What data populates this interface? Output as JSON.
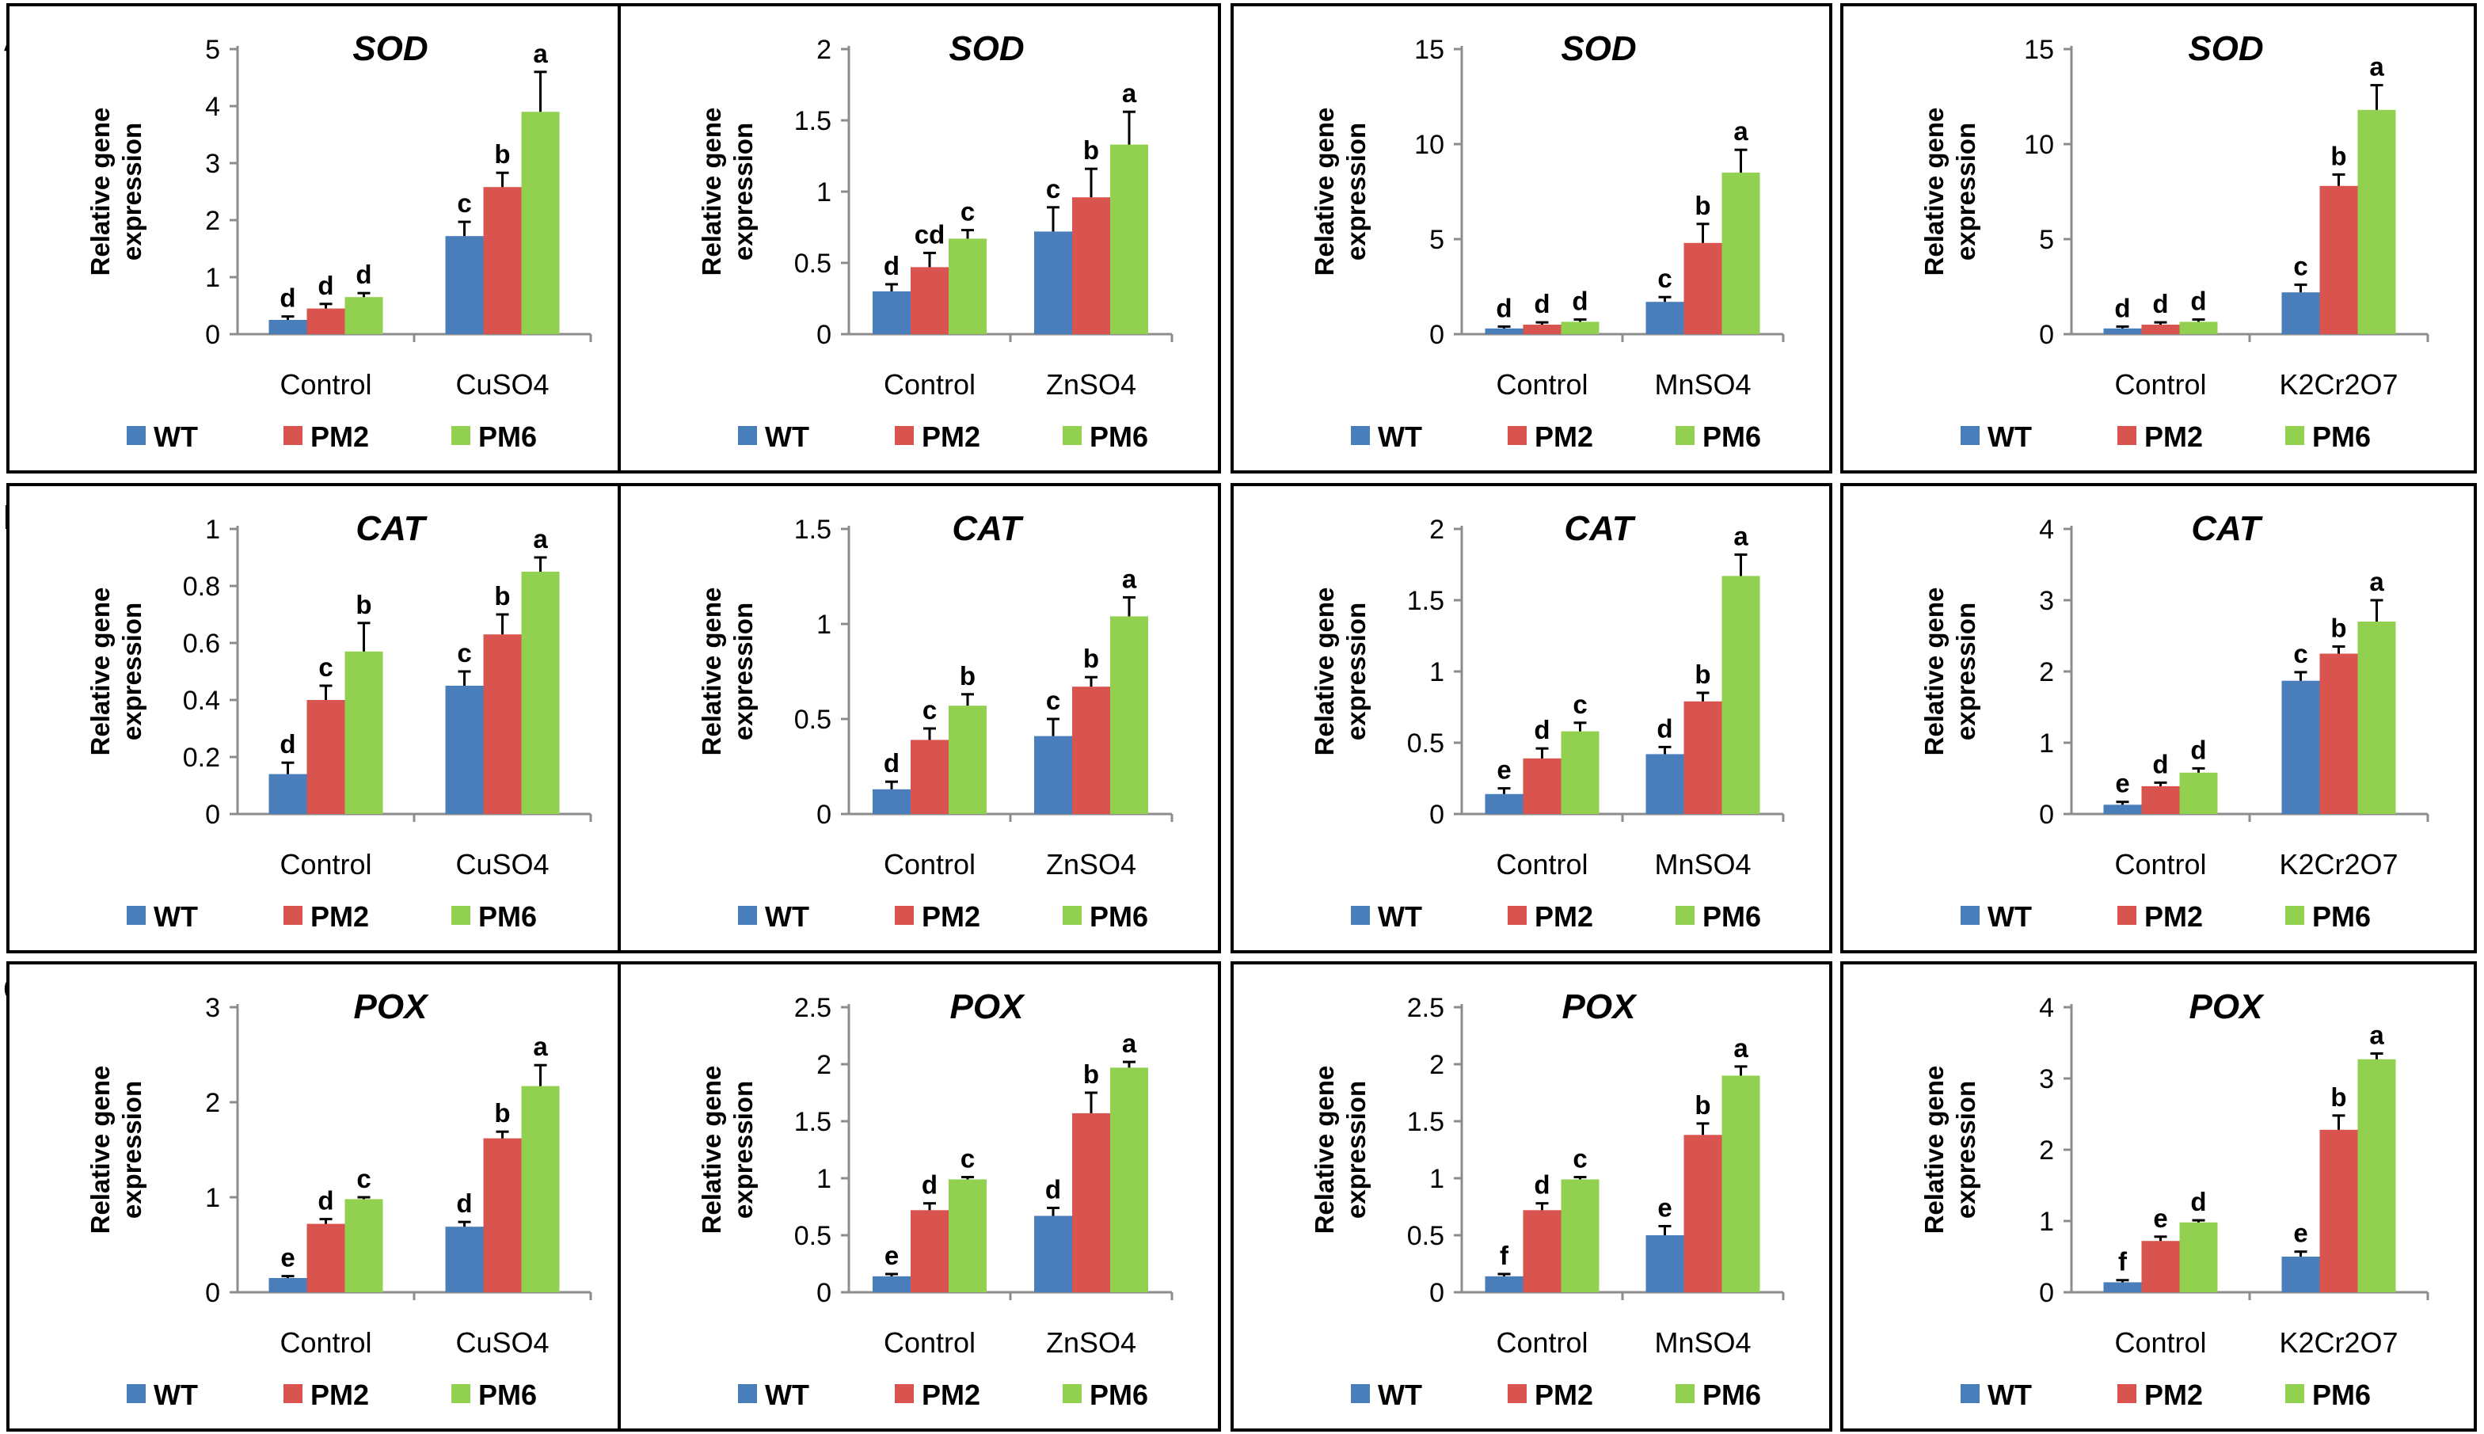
{
  "figure": {
    "row_labels": [
      "A",
      "B",
      "C"
    ],
    "colors": {
      "WT": "#4a7ebb",
      "PM2": "#d9534f",
      "PM6": "#92d050"
    }
  },
  "chart_data": [
    {
      "type": "bar",
      "row": "A",
      "col": 0,
      "title": "SOD",
      "ylabel": "Relative gene expression",
      "ylabel_lines": [
        "Relative gene",
        "expression"
      ],
      "ylim": [
        0,
        5
      ],
      "yticks": [
        0,
        1,
        2,
        3,
        4,
        5
      ],
      "ytick_labels": [
        "0",
        "1",
        "2",
        "3",
        "4",
        "5"
      ],
      "categories": [
        "Control",
        "CuSO4"
      ],
      "legend": [
        "WT",
        "PM2",
        "PM6"
      ],
      "series": [
        {
          "name": "WT",
          "values": [
            0.25,
            1.72
          ],
          "errors": [
            0.06,
            0.25
          ],
          "letters": [
            "d",
            "c"
          ]
        },
        {
          "name": "PM2",
          "values": [
            0.45,
            2.58
          ],
          "errors": [
            0.08,
            0.25
          ],
          "letters": [
            "d",
            "b"
          ]
        },
        {
          "name": "PM6",
          "values": [
            0.65,
            3.9
          ],
          "errors": [
            0.07,
            0.7
          ],
          "letters": [
            "d",
            "a"
          ]
        }
      ]
    },
    {
      "type": "bar",
      "row": "A",
      "col": 1,
      "title": "SOD",
      "ylabel": "Relative gene expression",
      "ylabel_lines": [
        "Relative gene",
        "expression"
      ],
      "ylim": [
        0,
        2
      ],
      "yticks": [
        0,
        0.5,
        1,
        1.5,
        2
      ],
      "ytick_labels": [
        "0",
        "0.5",
        "1",
        "1.5",
        "2"
      ],
      "categories": [
        "Control",
        "ZnSO4"
      ],
      "legend": [
        "WT",
        "PM2",
        "PM6"
      ],
      "series": [
        {
          "name": "WT",
          "values": [
            0.3,
            0.72
          ],
          "errors": [
            0.05,
            0.17
          ],
          "letters": [
            "d",
            "c"
          ]
        },
        {
          "name": "PM2",
          "values": [
            0.47,
            0.96
          ],
          "errors": [
            0.1,
            0.2
          ],
          "letters": [
            "cd",
            "b"
          ]
        },
        {
          "name": "PM6",
          "values": [
            0.67,
            1.33
          ],
          "errors": [
            0.06,
            0.23
          ],
          "letters": [
            "c",
            "a"
          ]
        }
      ]
    },
    {
      "type": "bar",
      "row": "A",
      "col": 2,
      "title": "SOD",
      "ylabel": "Relative gene expression",
      "ylabel_lines": [
        "Relative gene",
        "expression"
      ],
      "ylim": [
        0,
        15
      ],
      "yticks": [
        0,
        5,
        10,
        15
      ],
      "ytick_labels": [
        "0",
        "5",
        "10",
        "15"
      ],
      "categories": [
        "Control",
        "MnSO4"
      ],
      "legend": [
        "WT",
        "PM2",
        "PM6"
      ],
      "series": [
        {
          "name": "WT",
          "values": [
            0.3,
            1.7
          ],
          "errors": [
            0.1,
            0.25
          ],
          "letters": [
            "d",
            "c"
          ]
        },
        {
          "name": "PM2",
          "values": [
            0.5,
            4.8
          ],
          "errors": [
            0.12,
            1.0
          ],
          "letters": [
            "d",
            "b"
          ]
        },
        {
          "name": "PM6",
          "values": [
            0.65,
            8.5
          ],
          "errors": [
            0.12,
            1.2
          ],
          "letters": [
            "d",
            "a"
          ]
        }
      ]
    },
    {
      "type": "bar",
      "row": "A",
      "col": 3,
      "title": "SOD",
      "ylabel": "Relative gene expression",
      "ylabel_lines": [
        "Relative gene",
        "expression"
      ],
      "ylim": [
        0,
        15
      ],
      "yticks": [
        0,
        5,
        10,
        15
      ],
      "ytick_labels": [
        "0",
        "5",
        "10",
        "15"
      ],
      "categories": [
        "Control",
        "K2Cr2O7"
      ],
      "legend": [
        "WT",
        "PM2",
        "PM6"
      ],
      "series": [
        {
          "name": "WT",
          "values": [
            0.3,
            2.2
          ],
          "errors": [
            0.1,
            0.4
          ],
          "letters": [
            "d",
            "c"
          ]
        },
        {
          "name": "PM2",
          "values": [
            0.5,
            7.8
          ],
          "errors": [
            0.12,
            0.6
          ],
          "letters": [
            "d",
            "b"
          ]
        },
        {
          "name": "PM6",
          "values": [
            0.65,
            11.8
          ],
          "errors": [
            0.12,
            1.3
          ],
          "letters": [
            "d",
            "a"
          ]
        }
      ]
    },
    {
      "type": "bar",
      "row": "B",
      "col": 0,
      "title": "CAT",
      "ylabel": "Relative gene expression",
      "ylabel_lines": [
        "Relative gene",
        "expression"
      ],
      "ylim": [
        0,
        1
      ],
      "yticks": [
        0,
        0.2,
        0.4,
        0.6,
        0.8,
        1
      ],
      "ytick_labels": [
        "0",
        "0.2",
        "0.4",
        "0.6",
        "0.8",
        "1"
      ],
      "categories": [
        "Control",
        "CuSO4"
      ],
      "legend": [
        "WT",
        "PM2",
        "PM6"
      ],
      "series": [
        {
          "name": "WT",
          "values": [
            0.14,
            0.45
          ],
          "errors": [
            0.04,
            0.05
          ],
          "letters": [
            "d",
            "c"
          ]
        },
        {
          "name": "PM2",
          "values": [
            0.4,
            0.63
          ],
          "errors": [
            0.05,
            0.07
          ],
          "letters": [
            "c",
            "b"
          ]
        },
        {
          "name": "PM6",
          "values": [
            0.57,
            0.85
          ],
          "errors": [
            0.1,
            0.05
          ],
          "letters": [
            "b",
            "a"
          ]
        }
      ]
    },
    {
      "type": "bar",
      "row": "B",
      "col": 1,
      "title": "CAT",
      "ylabel": "Relative gene expression",
      "ylabel_lines": [
        "Relative gene",
        "expression"
      ],
      "ylim": [
        0,
        1.5
      ],
      "yticks": [
        0,
        0.5,
        1,
        1.5
      ],
      "ytick_labels": [
        "0",
        "0.5",
        "1",
        "1.5"
      ],
      "categories": [
        "Control",
        "ZnSO4"
      ],
      "legend": [
        "WT",
        "PM2",
        "PM6"
      ],
      "series": [
        {
          "name": "WT",
          "values": [
            0.13,
            0.41
          ],
          "errors": [
            0.04,
            0.09
          ],
          "letters": [
            "d",
            "c"
          ]
        },
        {
          "name": "PM2",
          "values": [
            0.39,
            0.67
          ],
          "errors": [
            0.06,
            0.05
          ],
          "letters": [
            "c",
            "b"
          ]
        },
        {
          "name": "PM6",
          "values": [
            0.57,
            1.04
          ],
          "errors": [
            0.06,
            0.1
          ],
          "letters": [
            "b",
            "a"
          ]
        }
      ]
    },
    {
      "type": "bar",
      "row": "B",
      "col": 2,
      "title": "CAT",
      "ylabel": "Relative gene expression",
      "ylabel_lines": [
        "Relative gene",
        "expression"
      ],
      "ylim": [
        0,
        2
      ],
      "yticks": [
        0,
        0.5,
        1,
        1.5,
        2
      ],
      "ytick_labels": [
        "0",
        "0.5",
        "1",
        "1.5",
        "2"
      ],
      "categories": [
        "Control",
        "MnSO4"
      ],
      "legend": [
        "WT",
        "PM2",
        "PM6"
      ],
      "series": [
        {
          "name": "WT",
          "values": [
            0.14,
            0.42
          ],
          "errors": [
            0.04,
            0.05
          ],
          "letters": [
            "e",
            "d"
          ]
        },
        {
          "name": "PM2",
          "values": [
            0.39,
            0.79
          ],
          "errors": [
            0.07,
            0.06
          ],
          "letters": [
            "d",
            "b"
          ]
        },
        {
          "name": "PM6",
          "values": [
            0.58,
            1.67
          ],
          "errors": [
            0.06,
            0.15
          ],
          "letters": [
            "c",
            "a"
          ]
        }
      ]
    },
    {
      "type": "bar",
      "row": "B",
      "col": 3,
      "title": "CAT",
      "ylabel": "Relative gene expression",
      "ylabel_lines": [
        "Relative gene",
        "expression"
      ],
      "ylim": [
        0,
        4
      ],
      "yticks": [
        0,
        1,
        2,
        3,
        4
      ],
      "ytick_labels": [
        "0",
        "1",
        "2",
        "3",
        "4"
      ],
      "categories": [
        "Control",
        "K2Cr2O7"
      ],
      "legend": [
        "WT",
        "PM2",
        "PM6"
      ],
      "series": [
        {
          "name": "WT",
          "values": [
            0.13,
            1.87
          ],
          "errors": [
            0.04,
            0.12
          ],
          "letters": [
            "e",
            "c"
          ]
        },
        {
          "name": "PM2",
          "values": [
            0.39,
            2.25
          ],
          "errors": [
            0.05,
            0.1
          ],
          "letters": [
            "d",
            "b"
          ]
        },
        {
          "name": "PM6",
          "values": [
            0.58,
            2.7
          ],
          "errors": [
            0.06,
            0.3
          ],
          "letters": [
            "d",
            "a"
          ]
        }
      ]
    },
    {
      "type": "bar",
      "row": "C",
      "col": 0,
      "title": "POX",
      "ylabel": "Relative gene expression",
      "ylabel_lines": [
        "Relative gene",
        "expression"
      ],
      "ylim": [
        0,
        3
      ],
      "yticks": [
        0,
        1,
        2,
        3
      ],
      "ytick_labels": [
        "0",
        "1",
        "2",
        "3"
      ],
      "categories": [
        "Control",
        "CuSO4"
      ],
      "legend": [
        "WT",
        "PM2",
        "PM6"
      ],
      "series": [
        {
          "name": "WT",
          "values": [
            0.15,
            0.69
          ],
          "errors": [
            0.02,
            0.05
          ],
          "letters": [
            "e",
            "d"
          ]
        },
        {
          "name": "PM2",
          "values": [
            0.72,
            1.62
          ],
          "errors": [
            0.05,
            0.07
          ],
          "letters": [
            "d",
            "b"
          ]
        },
        {
          "name": "PM6",
          "values": [
            0.98,
            2.17
          ],
          "errors": [
            0.02,
            0.22
          ],
          "letters": [
            "c",
            "a"
          ]
        }
      ]
    },
    {
      "type": "bar",
      "row": "C",
      "col": 1,
      "title": "POX",
      "ylabel": "Relative gene expression",
      "ylabel_lines": [
        "Relative gene",
        "expression"
      ],
      "ylim": [
        0,
        2.5
      ],
      "yticks": [
        0,
        0.5,
        1,
        1.5,
        2,
        2.5
      ],
      "ytick_labels": [
        "0",
        "0.5",
        "1",
        "1.5",
        "2",
        "2.5"
      ],
      "categories": [
        "Control",
        "ZnSO4"
      ],
      "legend": [
        "WT",
        "PM2",
        "PM6"
      ],
      "series": [
        {
          "name": "WT",
          "values": [
            0.14,
            0.67
          ],
          "errors": [
            0.02,
            0.07
          ],
          "letters": [
            "e",
            "d"
          ]
        },
        {
          "name": "PM2",
          "values": [
            0.72,
            1.57
          ],
          "errors": [
            0.06,
            0.18
          ],
          "letters": [
            "d",
            "b"
          ]
        },
        {
          "name": "PM6",
          "values": [
            0.99,
            1.97
          ],
          "errors": [
            0.02,
            0.05
          ],
          "letters": [
            "c",
            "a"
          ]
        }
      ]
    },
    {
      "type": "bar",
      "row": "C",
      "col": 2,
      "title": "POX",
      "ylabel": "Relative gene expression",
      "ylabel_lines": [
        "Relative gene",
        "expression"
      ],
      "ylim": [
        0,
        2.5
      ],
      "yticks": [
        0,
        0.5,
        1,
        1.5,
        2,
        2.5
      ],
      "ytick_labels": [
        "0",
        "0.5",
        "1",
        "1.5",
        "2",
        "2.5"
      ],
      "categories": [
        "Control",
        "MnSO4"
      ],
      "legend": [
        "WT",
        "PM2",
        "PM6"
      ],
      "series": [
        {
          "name": "WT",
          "values": [
            0.14,
            0.5
          ],
          "errors": [
            0.02,
            0.08
          ],
          "letters": [
            "f",
            "e"
          ]
        },
        {
          "name": "PM2",
          "values": [
            0.72,
            1.38
          ],
          "errors": [
            0.06,
            0.1
          ],
          "letters": [
            "d",
            "b"
          ]
        },
        {
          "name": "PM6",
          "values": [
            0.99,
            1.9
          ],
          "errors": [
            0.02,
            0.08
          ],
          "letters": [
            "c",
            "a"
          ]
        }
      ]
    },
    {
      "type": "bar",
      "row": "C",
      "col": 3,
      "title": "POX",
      "ylabel": "Relative gene expression",
      "ylabel_lines": [
        "Relative gene",
        "expression"
      ],
      "ylim": [
        0,
        4
      ],
      "yticks": [
        0,
        1,
        2,
        3,
        4
      ],
      "ytick_labels": [
        "0",
        "1",
        "2",
        "3",
        "4"
      ],
      "categories": [
        "Control",
        "K2Cr2O7"
      ],
      "legend": [
        "WT",
        "PM2",
        "PM6"
      ],
      "series": [
        {
          "name": "WT",
          "values": [
            0.14,
            0.5
          ],
          "errors": [
            0.03,
            0.07
          ],
          "letters": [
            "f",
            "e"
          ]
        },
        {
          "name": "PM2",
          "values": [
            0.72,
            2.28
          ],
          "errors": [
            0.06,
            0.2
          ],
          "letters": [
            "e",
            "b"
          ]
        },
        {
          "name": "PM6",
          "values": [
            0.98,
            3.27
          ],
          "errors": [
            0.03,
            0.08
          ],
          "letters": [
            "d",
            "a"
          ]
        }
      ]
    }
  ]
}
